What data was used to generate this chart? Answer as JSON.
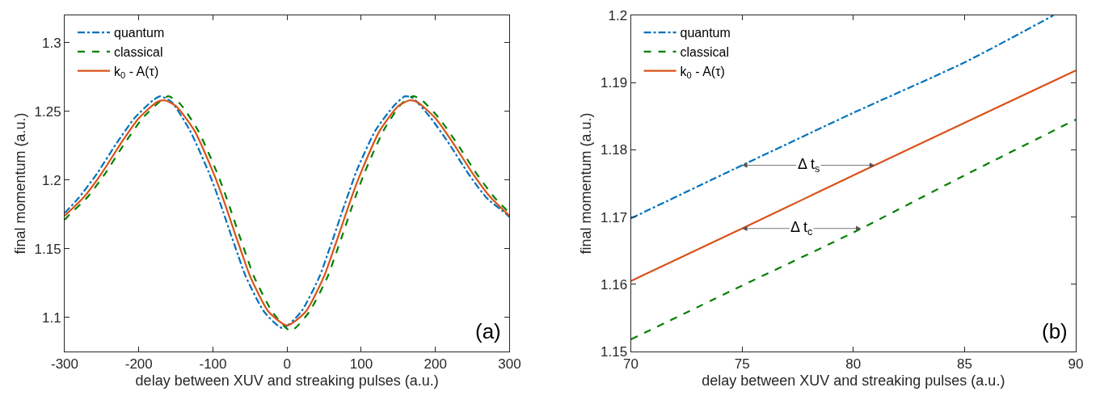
{
  "chart_data": [
    {
      "type": "line",
      "xlabel": "delay between XUV and streaking pulses (a.u.)",
      "ylabel": "final momentum (a.u.)",
      "xlim": [
        -300,
        300
      ],
      "xticks": [
        -300,
        -200,
        -100,
        0,
        100,
        200,
        300
      ],
      "ylim": [
        1.075,
        1.32
      ],
      "yticks": [
        1.1,
        1.15,
        1.2,
        1.25,
        1.3
      ],
      "legend": "top left",
      "marker": "none",
      "annotations": [
        "(a)"
      ],
      "series": [
        {
          "name": "quantum",
          "color": "#0072bd",
          "line_style": "dashdot",
          "x": [
            -300,
            -281,
            -256,
            -231,
            -206,
            -181,
            -171,
            -156,
            -131,
            -106,
            -96,
            -86,
            -76,
            -66,
            -56,
            -31,
            -6,
            19,
            44,
            54,
            64,
            74,
            84,
            94,
            119,
            144,
            159,
            169,
            194,
            219,
            244,
            269,
            294,
            300
          ],
          "values": [
            1.176,
            1.187,
            1.205,
            1.226,
            1.245,
            1.258,
            1.261,
            1.257,
            1.236,
            1.206,
            1.192,
            1.1765,
            1.1605,
            1.145,
            1.13,
            1.104,
            1.092,
            1.104,
            1.13,
            1.145,
            1.1605,
            1.1765,
            1.192,
            1.207,
            1.236,
            1.254,
            1.261,
            1.26,
            1.245,
            1.226,
            1.205,
            1.187,
            1.176,
            1.173
          ]
        },
        {
          "name": "classical",
          "color": "#008000",
          "line_style": "dashed",
          "x": [
            -300,
            -295,
            -270,
            -245,
            -220,
            -195,
            -170,
            -160,
            -145,
            -120,
            -95,
            -85,
            -75,
            -65,
            -55,
            -45,
            -20,
            5,
            30,
            55,
            65,
            75,
            85,
            95,
            105,
            130,
            155,
            170,
            180,
            205,
            230,
            255,
            280,
            300
          ],
          "values": [
            1.171,
            1.174,
            1.187,
            1.205,
            1.226,
            1.245,
            1.258,
            1.261,
            1.256,
            1.236,
            1.206,
            1.192,
            1.1765,
            1.1605,
            1.145,
            1.13,
            1.104,
            1.09,
            1.104,
            1.13,
            1.145,
            1.1605,
            1.1765,
            1.192,
            1.206,
            1.236,
            1.256,
            1.261,
            1.259,
            1.245,
            1.226,
            1.205,
            1.187,
            1.176
          ]
        },
        {
          "name": "k$_{0}$ - A(τ)",
          "color": "#d95319",
          "line_style": "solid",
          "x": [
            -300,
            -275,
            -250,
            -225,
            -200,
            -175,
            -165,
            -150,
            -125,
            -100,
            -90,
            -80,
            -70,
            -60,
            -50,
            -25,
            0,
            25,
            50,
            60,
            70,
            80,
            90,
            100,
            125,
            150,
            165,
            175,
            200,
            225,
            250,
            275,
            300
          ],
          "values": [
            1.174,
            1.187,
            1.205,
            1.226,
            1.245,
            1.257,
            1.258,
            1.254,
            1.236,
            1.206,
            1.192,
            1.1765,
            1.1605,
            1.145,
            1.13,
            1.104,
            1.094,
            1.104,
            1.13,
            1.145,
            1.1605,
            1.1765,
            1.192,
            1.206,
            1.236,
            1.254,
            1.258,
            1.257,
            1.245,
            1.226,
            1.205,
            1.187,
            1.174
          ]
        }
      ]
    },
    {
      "type": "line",
      "xlabel": "delay between XUV and streaking pulses (a.u.)",
      "ylabel": "final momentum (a.u.)",
      "xlim": [
        70,
        90
      ],
      "xticks": [
        70,
        75,
        80,
        85,
        90
      ],
      "ylim": [
        1.15,
        1.2
      ],
      "yticks": [
        1.15,
        1.16,
        1.17,
        1.18,
        1.19,
        1.2
      ],
      "legend": "top left",
      "marker": "none",
      "annotations": [
        {
          "text": "Δ t$_{s}$",
          "x": 75,
          "y": 1.1777
        },
        {
          "text": "Δ t$_{c}$",
          "x": 75,
          "y": 1.1683
        },
        "(b)"
      ],
      "series": [
        {
          "name": "quantum",
          "color": "#0072bd",
          "line_style": "dashdot",
          "x": [
            70,
            75,
            80,
            85,
            89
          ],
          "values": [
            1.1698,
            1.1777,
            1.1855,
            1.193,
            1.2
          ]
        },
        {
          "name": "classical",
          "color": "#008000",
          "line_style": "dashed",
          "x": [
            70,
            75,
            80,
            85,
            90
          ],
          "values": [
            1.1518,
            1.1598,
            1.1677,
            1.1762,
            1.1845
          ]
        },
        {
          "name": "k$_{0}$ - A(τ)",
          "color": "#d95319",
          "line_style": "solid",
          "x": [
            70,
            75,
            80,
            85,
            90
          ],
          "values": [
            1.1605,
            1.1683,
            1.1762,
            1.184,
            1.1918
          ]
        }
      ]
    }
  ]
}
